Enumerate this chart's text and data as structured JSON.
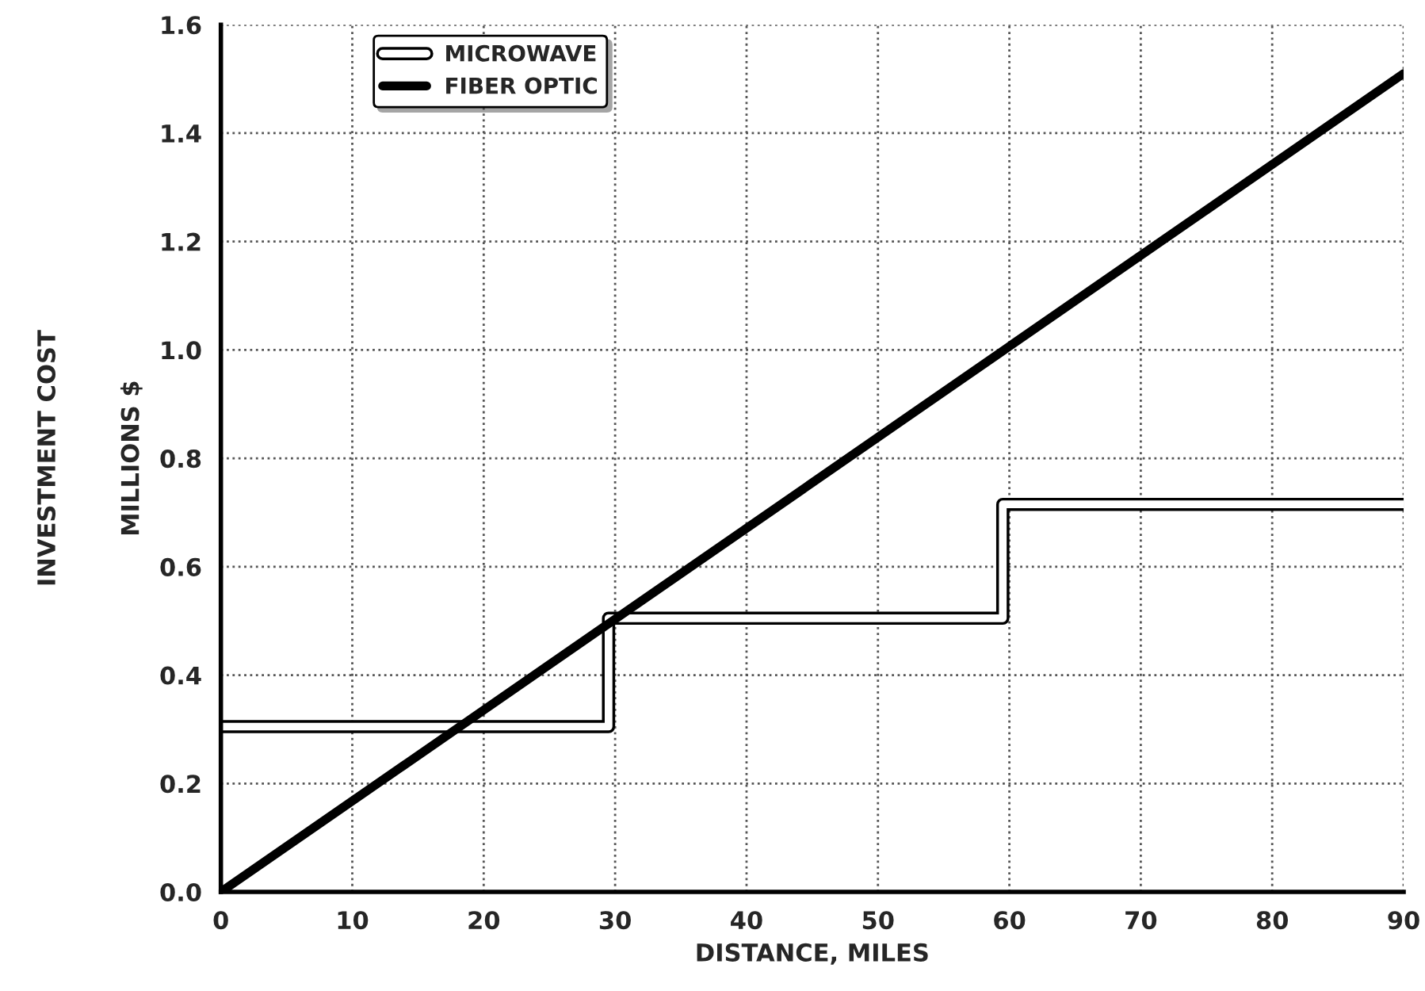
{
  "chart_data": {
    "type": "line",
    "xlabel": "DISTANCE, MILES",
    "ylabel": "INVESTMENT COST",
    "annotations": [
      "MILLIONS $"
    ],
    "xlim": [
      0,
      90
    ],
    "xticks": [
      0,
      10,
      20,
      30,
      40,
      50,
      60,
      70,
      80,
      90
    ],
    "ylim": [
      0,
      1.6
    ],
    "yticks": [
      {
        "value": 0,
        "label": "0.0"
      },
      {
        "value": 0.2,
        "label": "0.2"
      },
      {
        "value": 0.4,
        "label": "0.4"
      },
      {
        "value": 0.6,
        "label": "0.6"
      },
      {
        "value": 0.8,
        "label": "0.8"
      },
      {
        "value": 1.0,
        "label": "1.0"
      },
      {
        "value": 1.2,
        "label": "1.2"
      },
      {
        "value": 1.4,
        "label": "1.4"
      },
      {
        "value": 1.6,
        "label": "1.6"
      }
    ],
    "grid": true,
    "legend": "top left",
    "line_style": "solid",
    "series": [
      {
        "name": "MICROWAVE",
        "type": "step",
        "color": "#000000",
        "x": [
          0,
          29.5,
          59.5,
          90
        ],
        "values": [
          0.305,
          0.505,
          0.715,
          0.715
        ]
      },
      {
        "name": "FIBER OPTIC",
        "color": "#000000",
        "x": [
          0,
          90
        ],
        "values": [
          0,
          1.51
        ]
      }
    ]
  }
}
